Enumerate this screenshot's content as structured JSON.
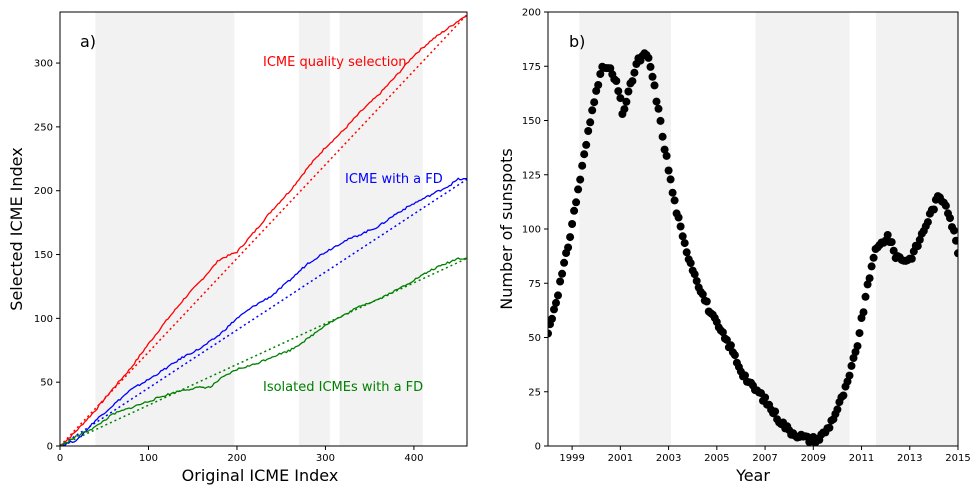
{
  "chart_data": [
    {
      "type": "line",
      "panel_label": "a)",
      "xlabel": "Original ICME Index",
      "ylabel": "Selected ICME Index",
      "xlim": [
        0,
        460
      ],
      "ylim": [
        0,
        340
      ],
      "xticks": [
        0,
        100,
        200,
        300,
        400
      ],
      "yticks": [
        0,
        50,
        100,
        150,
        200,
        250,
        300
      ],
      "shaded_bands": [
        [
          40,
          197
        ],
        [
          270,
          305
        ],
        [
          316,
          410
        ]
      ],
      "series": [
        {
          "name": "ICME quality selection",
          "color": "#ff0000",
          "final": 338,
          "points": [
            [
              0,
              0
            ],
            [
              10,
              6
            ],
            [
              20,
              13
            ],
            [
              40,
              28
            ],
            [
              60,
              45
            ],
            [
              80,
              61
            ],
            [
              100,
              80
            ],
            [
              120,
              98
            ],
            [
              140,
              115
            ],
            [
              160,
              130
            ],
            [
              180,
              146
            ],
            [
              200,
              152
            ],
            [
              220,
              168
            ],
            [
              240,
              185
            ],
            [
              260,
              200
            ],
            [
              280,
              218
            ],
            [
              300,
              234
            ],
            [
              320,
              247
            ],
            [
              340,
              262
            ],
            [
              360,
              275
            ],
            [
              380,
              290
            ],
            [
              400,
              306
            ],
            [
              420,
              318
            ],
            [
              440,
              328
            ],
            [
              460,
              338
            ]
          ],
          "fit_end": [
            460,
            338
          ]
        },
        {
          "name": "ICME with a FD",
          "color": "#0000ff",
          "final": 209,
          "points": [
            [
              0,
              0
            ],
            [
              20,
              5
            ],
            [
              40,
              20
            ],
            [
              60,
              32
            ],
            [
              80,
              44
            ],
            [
              100,
              52
            ],
            [
              120,
              61
            ],
            [
              140,
              70
            ],
            [
              160,
              77
            ],
            [
              180,
              87
            ],
            [
              200,
              100
            ],
            [
              220,
              110
            ],
            [
              240,
              118
            ],
            [
              260,
              130
            ],
            [
              280,
              143
            ],
            [
              300,
              152
            ],
            [
              320,
              160
            ],
            [
              340,
              166
            ],
            [
              360,
              172
            ],
            [
              380,
              182
            ],
            [
              400,
              190
            ],
            [
              420,
              197
            ],
            [
              440,
              204
            ],
            [
              450,
              209
            ],
            [
              460,
              209
            ]
          ],
          "fit_end": [
            460,
            209
          ]
        },
        {
          "name": "Isolated ICMEs with a FD",
          "color": "#008000",
          "final": 147,
          "points": [
            [
              0,
              0
            ],
            [
              20,
              8
            ],
            [
              40,
              15
            ],
            [
              60,
              25
            ],
            [
              80,
              30
            ],
            [
              100,
              35
            ],
            [
              120,
              40
            ],
            [
              140,
              44
            ],
            [
              160,
              46
            ],
            [
              170,
              46
            ],
            [
              180,
              52
            ],
            [
              200,
              60
            ],
            [
              220,
              64
            ],
            [
              240,
              70
            ],
            [
              260,
              75
            ],
            [
              280,
              84
            ],
            [
              300,
              95
            ],
            [
              320,
              102
            ],
            [
              340,
              110
            ],
            [
              360,
              115
            ],
            [
              380,
              122
            ],
            [
              400,
              130
            ],
            [
              420,
              138
            ],
            [
              440,
              144
            ],
            [
              450,
              147
            ],
            [
              460,
              147
            ]
          ],
          "fit_end": [
            460,
            147
          ]
        }
      ]
    },
    {
      "type": "scatter",
      "panel_label": "b)",
      "xlabel": "Year",
      "ylabel": "Number of sunspots",
      "xlim": [
        1998,
        2015
      ],
      "ylim": [
        0,
        200
      ],
      "xticks": [
        1999,
        2001,
        2003,
        2005,
        2007,
        2009,
        2011,
        2013,
        2015
      ],
      "yticks": [
        0,
        25,
        50,
        75,
        100,
        125,
        150,
        175,
        200
      ],
      "shaded_bands": [
        [
          1999.3,
          2003.1
        ],
        [
          2006.6,
          2010.5
        ],
        [
          2011.6,
          2015
        ]
      ],
      "color": "#000000",
      "keypoints": [
        [
          1998.0,
          52
        ],
        [
          1998.4,
          70
        ],
        [
          1998.8,
          90
        ],
        [
          1999.2,
          115
        ],
        [
          1999.6,
          140
        ],
        [
          2000.0,
          165
        ],
        [
          2000.3,
          175
        ],
        [
          2000.6,
          173
        ],
        [
          2000.9,
          165
        ],
        [
          2001.1,
          153
        ],
        [
          2001.4,
          165
        ],
        [
          2001.7,
          177
        ],
        [
          2002.0,
          180
        ],
        [
          2002.2,
          178
        ],
        [
          2002.5,
          160
        ],
        [
          2002.8,
          140
        ],
        [
          2003.2,
          115
        ],
        [
          2003.6,
          95
        ],
        [
          2004.0,
          82
        ],
        [
          2004.4,
          70
        ],
        [
          2004.8,
          60
        ],
        [
          2005.2,
          52
        ],
        [
          2005.6,
          45
        ],
        [
          2006.0,
          35
        ],
        [
          2006.4,
          28
        ],
        [
          2006.8,
          24
        ],
        [
          2007.2,
          18
        ],
        [
          2007.6,
          12
        ],
        [
          2008.0,
          7
        ],
        [
          2008.4,
          5
        ],
        [
          2008.8,
          3
        ],
        [
          2009.2,
          3
        ],
        [
          2009.6,
          8
        ],
        [
          2010.0,
          17
        ],
        [
          2010.4,
          28
        ],
        [
          2010.8,
          45
        ],
        [
          2011.2,
          70
        ],
        [
          2011.5,
          88
        ],
        [
          2011.8,
          93
        ],
        [
          2012.1,
          97
        ],
        [
          2012.4,
          88
        ],
        [
          2012.7,
          86
        ],
        [
          2013.0,
          86
        ],
        [
          2013.3,
          92
        ],
        [
          2013.6,
          100
        ],
        [
          2013.9,
          108
        ],
        [
          2014.2,
          115
        ],
        [
          2014.5,
          112
        ],
        [
          2014.8,
          100
        ],
        [
          2015.0,
          90
        ]
      ]
    }
  ]
}
